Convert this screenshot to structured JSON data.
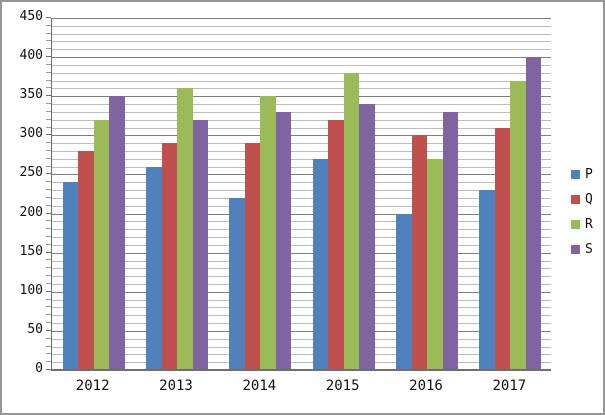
{
  "chart_data": {
    "type": "bar",
    "title": "",
    "xlabel": "",
    "ylabel": "",
    "categories": [
      "2012",
      "2013",
      "2014",
      "2015",
      "2016",
      "2017"
    ],
    "series": [
      {
        "name": "P",
        "color": "#4F81BD",
        "values": [
          240,
          260,
          220,
          270,
          200,
          230
        ]
      },
      {
        "name": "Q",
        "color": "#C0504D",
        "values": [
          280,
          290,
          290,
          320,
          300,
          310
        ]
      },
      {
        "name": "R",
        "color": "#9BBB59",
        "values": [
          320,
          360,
          350,
          380,
          270,
          370
        ]
      },
      {
        "name": "S",
        "color": "#8064A2",
        "values": [
          350,
          320,
          330,
          340,
          330,
          400
        ]
      }
    ],
    "ylim": [
      0,
      450
    ],
    "y_major_step": 50,
    "y_minor_step": 10,
    "y_tick_labels": [
      "0",
      "50",
      "100",
      "150",
      "200",
      "250",
      "300",
      "350",
      "400",
      "450"
    ],
    "grid": "horizontal; minor lines every 10 (light gray), major lines every 50 (dark gray)",
    "legend_position": "right",
    "legend_entries": [
      "P",
      "Q",
      "R",
      "S"
    ]
  },
  "colors": {
    "background": "#ffffff",
    "frame_border": "#969696",
    "axis_line": "#6e6e6e",
    "gridline_minor": "#bcbcbc",
    "gridline_major": "#7f7f7f",
    "tick_label_text": "#111111"
  }
}
